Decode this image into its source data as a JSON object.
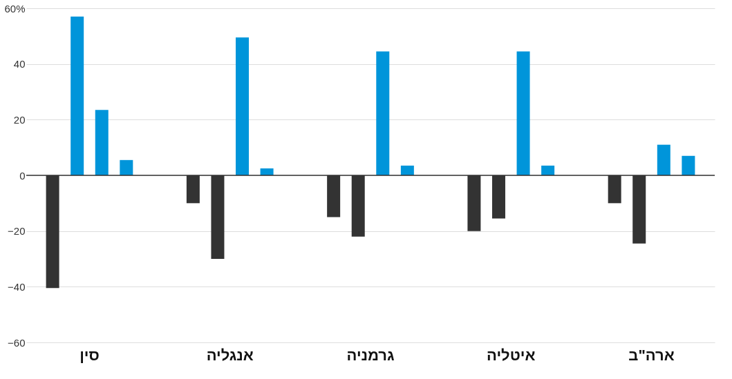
{
  "chart_data": {
    "type": "bar",
    "categories": [
      "סין",
      "אנגליה",
      "גרמניה",
      "איטליה",
      "ארה\"ב"
    ],
    "series": [
      {
        "colors": [
          "#333333",
          "#333333",
          "#333333",
          "#333333",
          "#333333"
        ],
        "values": [
          -40.5,
          -10,
          -15,
          -20,
          -10
        ]
      },
      {
        "colors": [
          "#0095da",
          "#333333",
          "#333333",
          "#333333",
          "#333333"
        ],
        "values": [
          57,
          -30,
          -22,
          -15.5,
          -24.5
        ]
      },
      {
        "colors": [
          "#0095da",
          "#0095da",
          "#0095da",
          "#0095da",
          "#0095da"
        ],
        "values": [
          23.5,
          49.5,
          44.5,
          44.5,
          11
        ]
      },
      {
        "colors": [
          "#0095da",
          "#0095da",
          "#0095da",
          "#0095da",
          "#0095da"
        ],
        "values": [
          5.5,
          2.5,
          3.5,
          3.5,
          7
        ]
      }
    ],
    "ylim": [
      -60,
      60
    ],
    "yticks": [
      -60,
      -40,
      -20,
      0,
      20,
      40,
      {
        "value": 60,
        "label": "60%"
      }
    ],
    "ref_lines": [
      {
        "axis": "y",
        "value": 0,
        "color": "#333333"
      }
    ],
    "grid": "y"
  }
}
